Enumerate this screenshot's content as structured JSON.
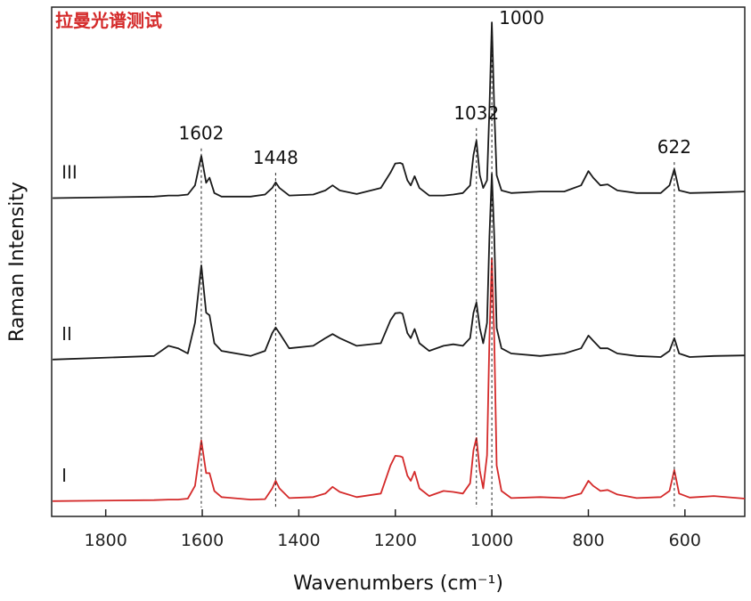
{
  "chart_data": {
    "type": "line",
    "title": "拉曼光谱测试",
    "x_label": "Wavenumbers (cm⁻¹)",
    "y_label": "Raman Intensity",
    "x": [
      1910,
      1700,
      1670,
      1650,
      1630,
      1615,
      1602,
      1592,
      1585,
      1575,
      1560,
      1500,
      1470,
      1455,
      1448,
      1440,
      1420,
      1370,
      1345,
      1330,
      1315,
      1280,
      1230,
      1210,
      1200,
      1190,
      1185,
      1175,
      1168,
      1160,
      1150,
      1130,
      1100,
      1080,
      1060,
      1045,
      1038,
      1032,
      1025,
      1018,
      1010,
      1005,
      1000,
      995,
      990,
      980,
      960,
      900,
      850,
      815,
      800,
      790,
      775,
      760,
      740,
      700,
      650,
      632,
      622,
      612,
      590,
      540,
      476
    ],
    "series": [
      {
        "name": "III",
        "color": "#1a1a1a",
        "values": [
          62.5,
          62.8,
          63,
          63,
          63.2,
          65,
          70.8,
          65.5,
          66.5,
          63.5,
          62.8,
          62.8,
          63.2,
          64.5,
          65.6,
          64.5,
          63,
          63.2,
          64,
          65,
          64,
          63.3,
          64.5,
          67.5,
          69.3,
          69.4,
          69.2,
          66,
          65,
          66.8,
          64.5,
          63,
          63,
          63.2,
          63.5,
          65,
          71,
          73.8,
          67,
          64.5,
          66,
          80,
          97,
          80,
          67,
          64,
          63.5,
          63.8,
          63.8,
          65,
          67.8,
          66.5,
          65,
          65.2,
          64,
          63.5,
          63.5,
          65,
          68.2,
          64,
          63.5,
          63.6,
          63.8
        ]
      },
      {
        "name": "II",
        "color": "#1a1a1a",
        "values": [
          30.8,
          31.5,
          33.5,
          33,
          32,
          38,
          49.3,
          40,
          39.5,
          34,
          32.5,
          31.5,
          32.5,
          36,
          37.1,
          36,
          33,
          33.5,
          35,
          35.8,
          35,
          33.5,
          34,
          38.5,
          39.9,
          40,
          39.8,
          36,
          35,
          36.8,
          34,
          32.5,
          33.5,
          33.8,
          33.5,
          35,
          40,
          42,
          37,
          34,
          38,
          55,
          67.3,
          55,
          37,
          33,
          32,
          31.5,
          32,
          33,
          35.5,
          34.5,
          33,
          33,
          32,
          31.5,
          31.3,
          32.5,
          35,
          32,
          31.3,
          31.5,
          31.6
        ]
      },
      {
        "name": "I",
        "color": "#d42a2a",
        "values": [
          3,
          3.2,
          3.3,
          3.3,
          3.5,
          6,
          14.9,
          8.5,
          8.5,
          5,
          3.8,
          3.3,
          3.4,
          5.5,
          7,
          5.5,
          3.6,
          3.8,
          4.5,
          5.8,
          4.8,
          3.8,
          4.5,
          10,
          11.9,
          11.8,
          11.6,
          8,
          7,
          8.8,
          5.5,
          4,
          5,
          4.8,
          4.5,
          6.5,
          13,
          15.4,
          9,
          5.5,
          12,
          35,
          50.7,
          35,
          10,
          5,
          3.6,
          3.8,
          3.6,
          4.5,
          7,
          6,
          5,
          5.2,
          4.3,
          3.6,
          3.8,
          5,
          9.1,
          4.5,
          3.7,
          4,
          3.5
        ]
      }
    ],
    "annotations": [
      {
        "text": "1602",
        "x": 1602,
        "y": 74
      },
      {
        "text": "1448",
        "x": 1448,
        "y": 69.2
      },
      {
        "text": "1032",
        "x": 1032,
        "y": 78
      },
      {
        "text": "1000",
        "x": 1000,
        "y": 96.7
      },
      {
        "text": "622",
        "x": 622,
        "y": 71.3
      }
    ],
    "xlim": [
      1912,
      476
    ],
    "ylim": [
      0,
      100
    ],
    "xticks": [
      1800,
      1600,
      1400,
      1200,
      1000,
      800,
      600
    ],
    "title_color": "#d42a2a"
  }
}
